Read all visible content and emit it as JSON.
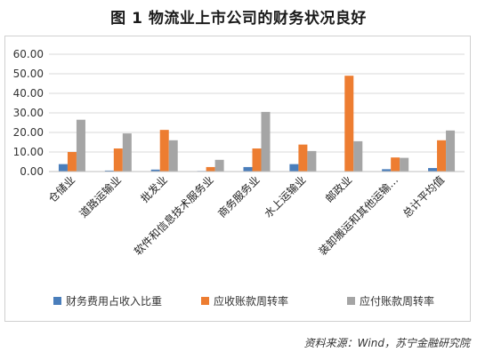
{
  "figure": {
    "title": "图 1  物流业上市公司的财务状况良好",
    "source": "资料来源：Wind，苏宁金融研究院"
  },
  "chart_data": {
    "type": "bar",
    "categories": [
      "仓储业",
      "道路运输业",
      "批发业",
      "软件和信息技术服务业",
      "商务服务业",
      "水上运输业",
      "邮政业",
      "装卸搬运和其他运输…",
      "总计平均值"
    ],
    "series": [
      {
        "name": "财务费用占收入比重",
        "color": "#4a7ebb",
        "values": [
          3.8,
          0.5,
          1.0,
          0.3,
          2.3,
          3.8,
          0.2,
          1.2,
          1.8
        ]
      },
      {
        "name": "应收账款周转率",
        "color": "#ed7d31",
        "values": [
          10.0,
          11.8,
          21.3,
          2.3,
          11.8,
          13.8,
          49.0,
          7.2,
          16.0
        ]
      },
      {
        "name": "应付账款周转率",
        "color": "#a5a5a5",
        "values": [
          26.5,
          19.5,
          16.0,
          6.0,
          30.5,
          10.5,
          15.5,
          7.0,
          21.0
        ]
      }
    ],
    "yticks": [
      "0.00",
      "10.00",
      "20.00",
      "30.00",
      "40.00",
      "50.00",
      "60.00"
    ],
    "ylim": [
      0,
      60
    ],
    "grid": true,
    "legend": "bottom"
  }
}
